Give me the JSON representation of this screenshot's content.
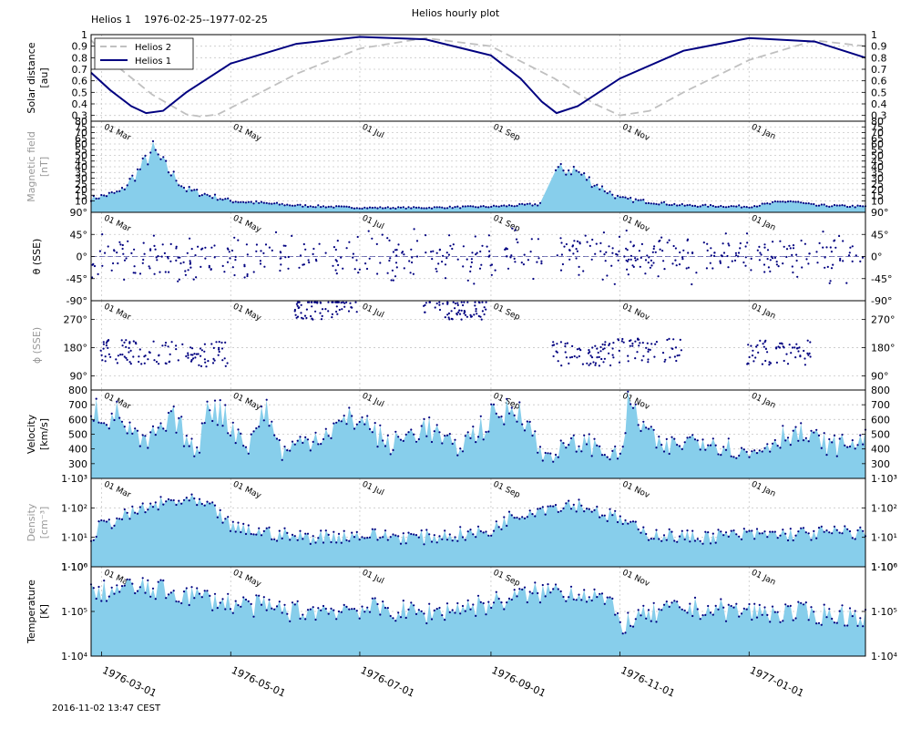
{
  "header": {
    "title": "Helios hourly plot",
    "mission": "Helios 1",
    "date_range": "1976-02-25--1977-02-25"
  },
  "footer": {
    "timestamp": "2016-11-02 13:47 CEST"
  },
  "colors": {
    "primary": "#000080",
    "fill": "#87ceeb",
    "secondary": "#c0c0c0",
    "grid": "#c8c8c8",
    "dim_label": "#999999"
  },
  "x_axis": {
    "start": "1976-02-25",
    "end": "1977-02-25",
    "ticks": [
      "1976-03-01",
      "1976-05-01",
      "1976-07-01",
      "1976-09-01",
      "1976-11-01",
      "1977-01-01"
    ],
    "month_labels": [
      "01 Mar",
      "01 May",
      "01 Jul",
      "01 Sep",
      "01 Nov",
      "01 Jan"
    ]
  },
  "chart_data": [
    {
      "type": "line",
      "ylabel": [
        "Solar distance",
        "[au]"
      ],
      "ylim": [
        0.25,
        1.0
      ],
      "yticks": [
        0.3,
        0.4,
        0.5,
        0.6,
        0.7,
        0.8,
        0.9,
        1
      ],
      "ytick_labels": [
        "0.3",
        "0.4",
        "0.5",
        "0.6",
        "0.7",
        "0.8",
        "0.9",
        "1"
      ],
      "legend": "top-left",
      "series": [
        {
          "name": "Helios 2",
          "style": "dashed",
          "color": "#c0c0c0",
          "x": [
            "1976-02-25",
            "1976-03-10",
            "1976-03-25",
            "1976-04-10",
            "1976-04-17",
            "1976-04-25",
            "1976-05-10",
            "1976-06-01",
            "1976-07-01",
            "1976-08-01",
            "1976-09-01",
            "1976-10-01",
            "1976-10-20",
            "1976-11-01",
            "1976-11-15",
            "1976-12-01",
            "1977-01-01",
            "1977-02-01",
            "1977-02-25"
          ],
          "y": [
            0.95,
            0.7,
            0.48,
            0.31,
            0.29,
            0.31,
            0.45,
            0.66,
            0.88,
            0.97,
            0.9,
            0.62,
            0.4,
            0.3,
            0.34,
            0.5,
            0.78,
            0.95,
            0.9
          ]
        },
        {
          "name": "Helios 1",
          "style": "solid",
          "color": "#000080",
          "x": [
            "1976-02-25",
            "1976-03-05",
            "1976-03-15",
            "1976-03-22",
            "1976-03-30",
            "1976-04-10",
            "1976-05-01",
            "1976-06-01",
            "1976-07-01",
            "1976-08-01",
            "1976-09-01",
            "1976-09-15",
            "1976-09-25",
            "1976-10-02",
            "1976-10-12",
            "1976-11-01",
            "1976-12-01",
            "1977-01-01",
            "1977-02-01",
            "1977-02-25"
          ],
          "y": [
            0.67,
            0.52,
            0.38,
            0.32,
            0.34,
            0.5,
            0.75,
            0.92,
            0.98,
            0.96,
            0.82,
            0.62,
            0.42,
            0.32,
            0.38,
            0.62,
            0.86,
            0.97,
            0.94,
            0.8
          ]
        }
      ]
    },
    {
      "type": "area",
      "ylabel": [
        "Magnetic field",
        "[nT]"
      ],
      "ylabel_dim": true,
      "ylim": [
        0,
        80
      ],
      "yticks": [
        10,
        15,
        20,
        25,
        30,
        35,
        40,
        45,
        50,
        55,
        60,
        65,
        70,
        75,
        80
      ],
      "ytick_labels": [
        "10",
        "15",
        "20",
        "25",
        "30",
        "35",
        "40",
        "45",
        "50",
        "55",
        "60",
        "65",
        "70",
        "75",
        "80"
      ],
      "gap": [
        "1976-09-25",
        "1976-10-01"
      ],
      "series": [
        {
          "name": "B",
          "x": [
            "1976-02-25",
            "1976-03-10",
            "1976-03-20",
            "1976-03-25",
            "1976-04-01",
            "1976-04-10",
            "1976-05-01",
            "1976-06-01",
            "1976-07-01",
            "1976-08-01",
            "1976-09-01",
            "1976-09-24",
            "1976-10-01",
            "1976-10-10",
            "1976-10-20",
            "1976-11-01",
            "1976-12-01",
            "1977-01-01",
            "1977-01-20",
            "1977-02-01",
            "1977-02-25"
          ],
          "y": [
            12,
            18,
            40,
            55,
            38,
            20,
            10,
            6,
            4,
            4,
            5,
            7,
            36,
            38,
            25,
            12,
            6,
            5,
            10,
            6,
            5
          ]
        }
      ]
    },
    {
      "type": "scatter",
      "ylabel": [
        "θ (SSE)"
      ],
      "ylim": [
        -90,
        90
      ],
      "yticks": [
        -90,
        -45,
        0,
        45,
        90
      ],
      "ytick_labels": [
        "-90°",
        "-45°",
        "0°",
        "45°",
        "90°"
      ],
      "gap": [
        "1976-09-25",
        "1976-10-01"
      ],
      "series": [
        {
          "name": "theta",
          "x": [
            "1976-02-25",
            "1976-04-01",
            "1976-05-01",
            "1976-06-01",
            "1976-07-01",
            "1976-08-01",
            "1976-09-01",
            "1976-10-01",
            "1976-11-01",
            "1976-12-01",
            "1977-01-01",
            "1977-02-25"
          ],
          "y": [
            0,
            0,
            0,
            0,
            0,
            0,
            0,
            0,
            0,
            0,
            0,
            0
          ]
        }
      ]
    },
    {
      "type": "scatter",
      "ylabel": [
        "ϕ (SSE)"
      ],
      "ylabel_dim": true,
      "ylim": [
        45,
        330
      ],
      "yticks": [
        90,
        180,
        270
      ],
      "ytick_labels": [
        "90°",
        "180°",
        "270°"
      ],
      "series": [
        {
          "name": "phi",
          "x": [
            "1976-03-15",
            "1976-04-15",
            "1976-06-15",
            "1976-08-15",
            "1976-10-15",
            "1976-11-15",
            "1977-01-15"
          ],
          "y": [
            165,
            160,
            310,
            310,
            160,
            170,
            165
          ]
        }
      ]
    },
    {
      "type": "area",
      "ylabel": [
        "Velocity",
        "[km/s]"
      ],
      "ylim": [
        200,
        800
      ],
      "yticks": [
        300,
        400,
        500,
        600,
        700,
        800
      ],
      "ytick_labels": [
        "300",
        "400",
        "500",
        "600",
        "700",
        "800"
      ],
      "series": [
        {
          "name": "V",
          "x": [
            "1976-02-25",
            "1976-03-01",
            "1976-03-10",
            "1976-03-20",
            "1976-04-05",
            "1976-04-15",
            "1976-04-20",
            "1976-05-10",
            "1976-05-17",
            "1976-05-25",
            "1976-06-15",
            "1976-07-01",
            "1976-07-15",
            "1976-08-01",
            "1976-08-15",
            "1976-09-01",
            "1976-09-15",
            "1976-09-25",
            "1976-10-15",
            "1976-11-01",
            "1976-11-05",
            "1976-11-20",
            "1976-12-10",
            "1977-01-01",
            "1977-01-20",
            "1977-02-10",
            "1977-02-25"
          ],
          "y": [
            700,
            640,
            620,
            420,
            600,
            350,
            740,
            420,
            700,
            380,
            520,
            620,
            420,
            560,
            400,
            600,
            700,
            350,
            450,
            340,
            700,
            400,
            480,
            360,
            520,
            420,
            460
          ]
        }
      ]
    },
    {
      "type": "area",
      "ylabel": [
        "Density",
        "[cm⁻³]"
      ],
      "ylabel_dim": true,
      "yscale": "log",
      "ylim": [
        1,
        1000
      ],
      "yticks": [
        1,
        10,
        100,
        1000
      ],
      "ytick_labels": [
        "1·10⁰",
        "1·10¹",
        "1·10²",
        "1·10³"
      ],
      "series": [
        {
          "name": "n",
          "x": [
            "1976-02-25",
            "1976-03-15",
            "1976-04-01",
            "1976-04-10",
            "1976-05-01",
            "1976-06-01",
            "1976-07-01",
            "1976-08-01",
            "1976-09-01",
            "1976-09-25",
            "1976-10-10",
            "1976-10-25",
            "1976-11-10",
            "1976-12-01",
            "1977-01-01",
            "1977-02-25"
          ],
          "y": [
            10,
            60,
            150,
            180,
            20,
            10,
            12,
            10,
            15,
            100,
            140,
            60,
            15,
            10,
            12,
            15
          ]
        }
      ]
    },
    {
      "type": "area",
      "ylabel": [
        "Temperature",
        "[K]"
      ],
      "yscale": "log",
      "ylim": [
        10000,
        1000000
      ],
      "yticks": [
        10000,
        100000,
        1000000
      ],
      "ytick_labels": [
        "1·10⁴",
        "1·10⁵",
        "1·10⁶"
      ],
      "series": [
        {
          "name": "T",
          "x": [
            "1976-02-25",
            "1976-03-15",
            "1976-04-01",
            "1976-05-01",
            "1976-06-01",
            "1976-07-01",
            "1976-08-01",
            "1976-09-01",
            "1976-10-01",
            "1976-10-20",
            "1976-11-01",
            "1976-12-01",
            "1977-01-01",
            "1977-02-25"
          ],
          "y": [
            250000,
            350000,
            280000,
            150000,
            100000,
            120000,
            90000,
            150000,
            300000,
            250000,
            50000,
            120000,
            100000,
            80000
          ]
        }
      ]
    }
  ]
}
